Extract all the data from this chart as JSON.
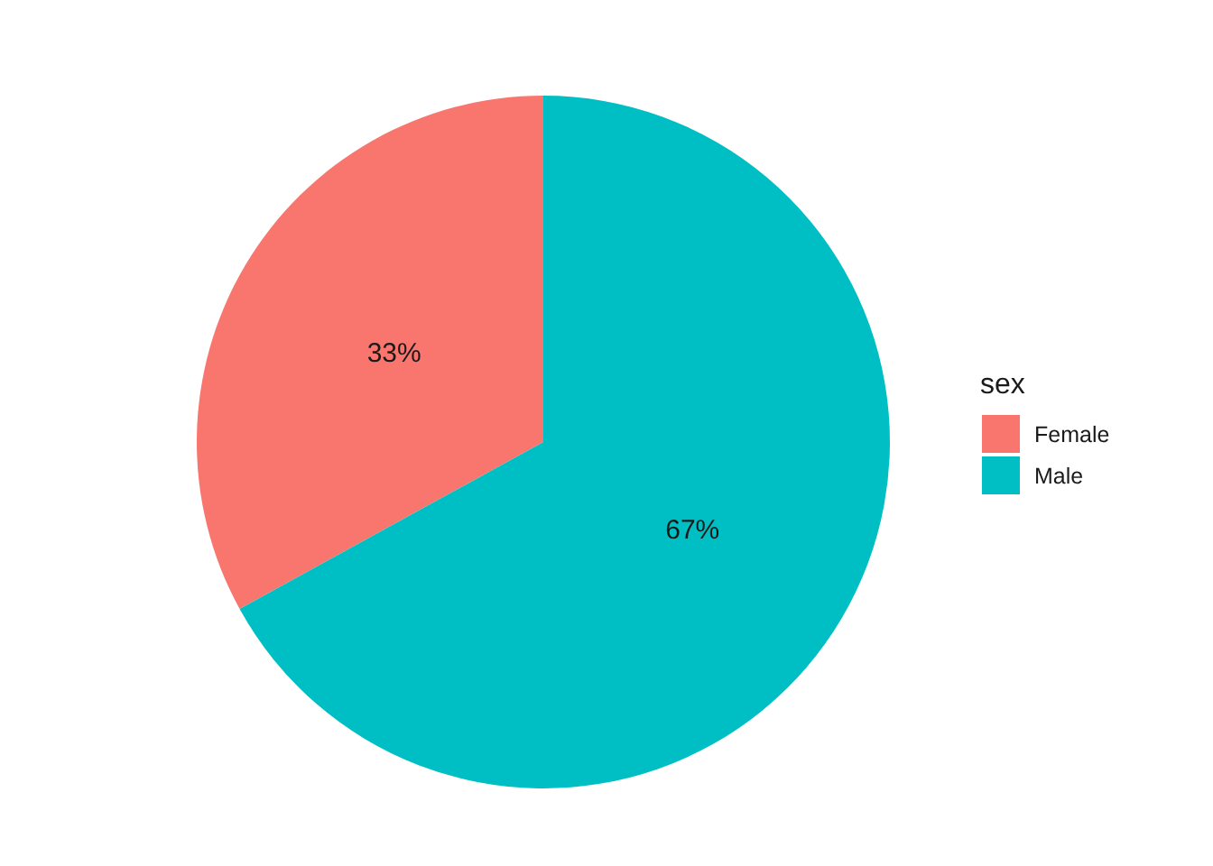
{
  "chart_data": {
    "type": "pie",
    "legend_title": "sex",
    "categories": [
      "Female",
      "Male"
    ],
    "values": [
      33,
      67
    ],
    "colors": [
      "#f8766d",
      "#00bfc4"
    ],
    "value_labels": [
      "33%",
      "67%"
    ],
    "legend": "right"
  }
}
